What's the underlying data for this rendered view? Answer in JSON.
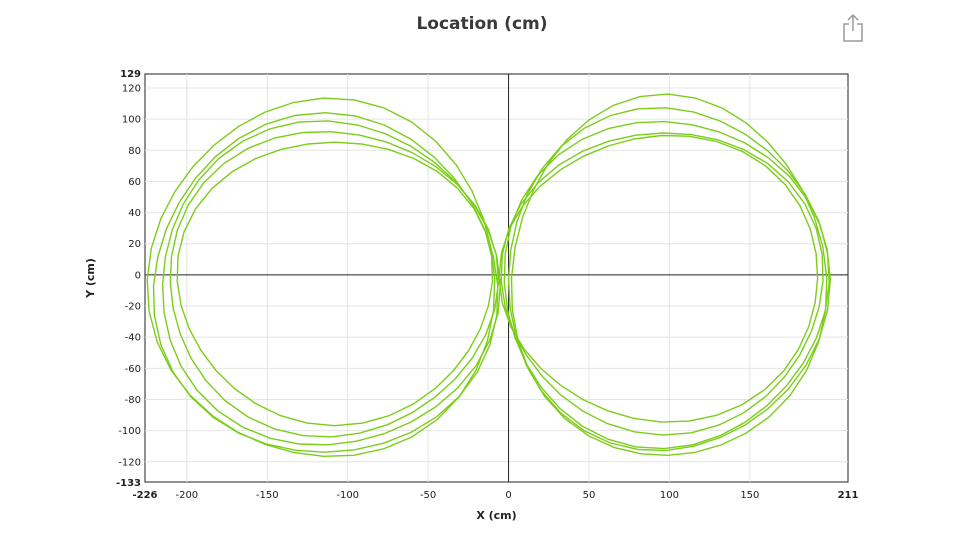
{
  "chart_data": {
    "type": "line",
    "title": "Location (cm)",
    "xlabel": "X (cm)",
    "ylabel": "Y (cm)",
    "xlim": [
      -226,
      211
    ],
    "ylim": [
      -133,
      129
    ],
    "x_ticks": [
      -200,
      -150,
      -100,
      -50,
      0,
      50,
      100,
      150
    ],
    "y_ticks": [
      120,
      100,
      80,
      60,
      40,
      20,
      0,
      -20,
      -40,
      -60,
      -80,
      -100,
      -120
    ],
    "x_min_label": "-226",
    "x_max_label": "211",
    "y_min_label": "-133",
    "y_max_label": "129",
    "grid": true,
    "line_color": "#7ccd1a",
    "loops": [
      {
        "cx": -108,
        "cy": -4,
        "rx": 98,
        "ry": 91
      },
      {
        "cx": -110,
        "cy": -5,
        "rx": 102,
        "ry": 98
      },
      {
        "cx": -112,
        "cy": -6,
        "rx": 105,
        "ry": 104
      },
      {
        "cx": -114,
        "cy": -7,
        "rx": 107,
        "ry": 109
      },
      {
        "cx": -115,
        "cy": -3,
        "rx": 108,
        "ry": 115
      },
      {
        "cx": 95,
        "cy": -2,
        "rx": 99,
        "ry": 92
      },
      {
        "cx": 96,
        "cy": -4,
        "rx": 100,
        "ry": 97
      },
      {
        "cx": 97,
        "cy": -5,
        "rx": 101,
        "ry": 105
      },
      {
        "cx": 98,
        "cy": -3,
        "rx": 100,
        "ry": 110
      },
      {
        "cx": 99,
        "cy": -2,
        "rx": 98,
        "ry": 116
      }
    ]
  },
  "toolbar": {
    "share_icon": "share-icon"
  }
}
